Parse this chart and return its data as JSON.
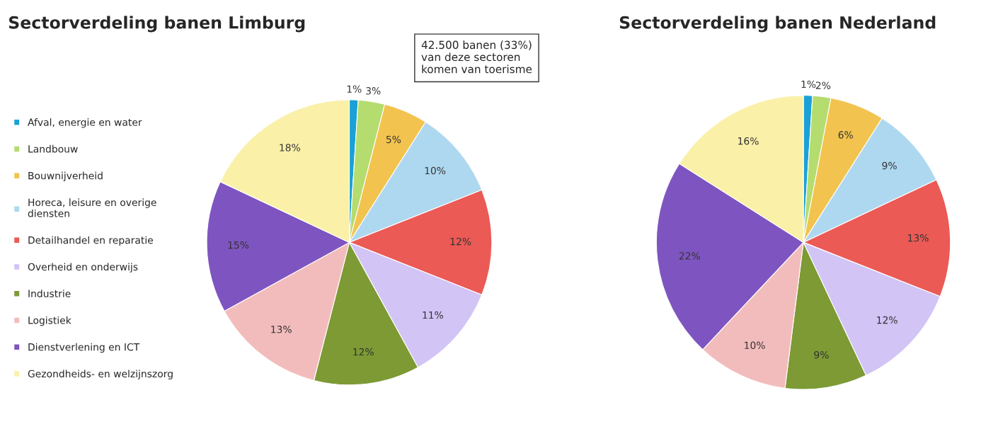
{
  "chart_data": [
    {
      "type": "pie",
      "title": "Sectorverdeling banen Limburg",
      "legend": "left",
      "categories": [
        "Afval, energie en water",
        "Landbouw",
        "Bouwnijverheid",
        "Horeca, leisure en overige diensten",
        "Detailhandel en reparatie",
        "Overheid en onderwijs",
        "Industrie",
        "Logistiek",
        "Dienstverlening en ICT",
        "Gezondheids- en welzijnszorg"
      ],
      "values": [
        1,
        3,
        5,
        10,
        12,
        11,
        12,
        13,
        15,
        18
      ],
      "value_labels": [
        "1%",
        "3%",
        "5%",
        "10%",
        "12%",
        "11%",
        "12%",
        "13%",
        "15%",
        "18%"
      ],
      "colors": [
        "#1ba1d6",
        "#b5dc6e",
        "#f2c34e",
        "#aed8ef",
        "#eb5a55",
        "#d2c4f5",
        "#7d9a34",
        "#f3bcbc",
        "#7e55c0",
        "#faf0a8"
      ],
      "annotations": [
        "42.500 banen (33%)\nvan deze sectoren\nkomen van toerisme"
      ]
    },
    {
      "type": "pie",
      "title": "Sectorverdeling banen Nederland",
      "legend": false,
      "categories": [
        null,
        null,
        null,
        null,
        null,
        null,
        null,
        null,
        null,
        null
      ],
      "values": [
        1,
        2,
        6,
        9,
        13,
        12,
        9,
        10,
        22,
        16
      ],
      "value_labels": [
        "1%",
        "2%",
        "6%",
        "9%",
        "13%",
        "12%",
        "9%",
        "10%",
        "22%",
        "16%"
      ],
      "colors": [
        "#1ba1d6",
        "#b5dc6e",
        "#f2c34e",
        "#aed8ef",
        "#eb5a55",
        "#d2c4f5",
        "#7d9a34",
        "#f3bcbc",
        "#7e55c0",
        "#faf0a8"
      ]
    }
  ]
}
